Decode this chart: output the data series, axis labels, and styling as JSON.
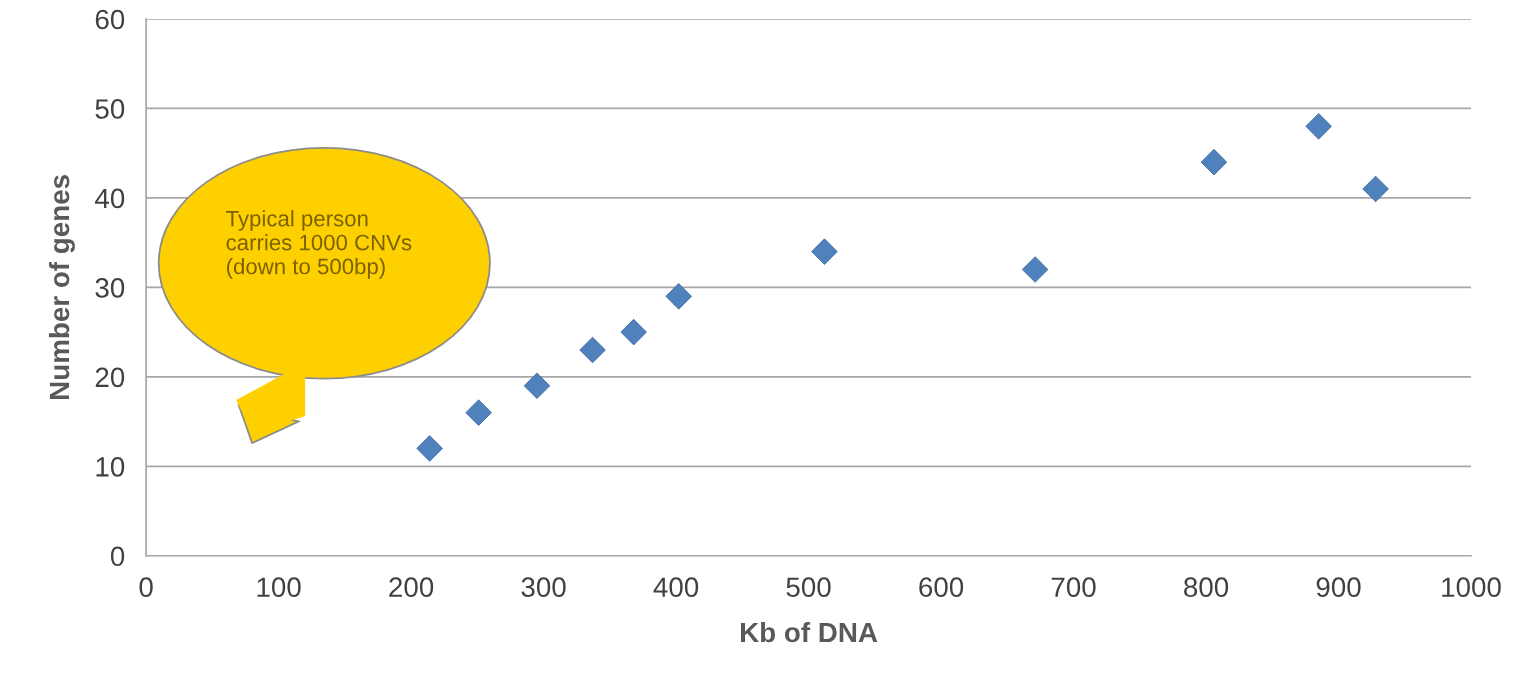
{
  "chart_data": {
    "type": "scatter",
    "xlabel": "Kb of DNA",
    "ylabel": "Number of genes",
    "x": [
      214,
      251,
      295,
      337,
      368,
      402,
      512,
      671,
      806,
      885,
      928
    ],
    "values": [
      12,
      16,
      19,
      23,
      25,
      29,
      34,
      32,
      44,
      48,
      41
    ],
    "color": "#4f81bd",
    "marker": "diamond",
    "xlim": [
      0,
      1000
    ],
    "xticks": [
      0,
      100,
      200,
      300,
      400,
      500,
      600,
      700,
      800,
      900,
      1000
    ],
    "ylim": [
      0,
      60
    ],
    "yticks": [
      0,
      10,
      20,
      30,
      40,
      50,
      60
    ],
    "grid": "y",
    "legend": false,
    "annotations": [
      "Typical person carries 1000 CNVs (down to 500bp)"
    ]
  }
}
